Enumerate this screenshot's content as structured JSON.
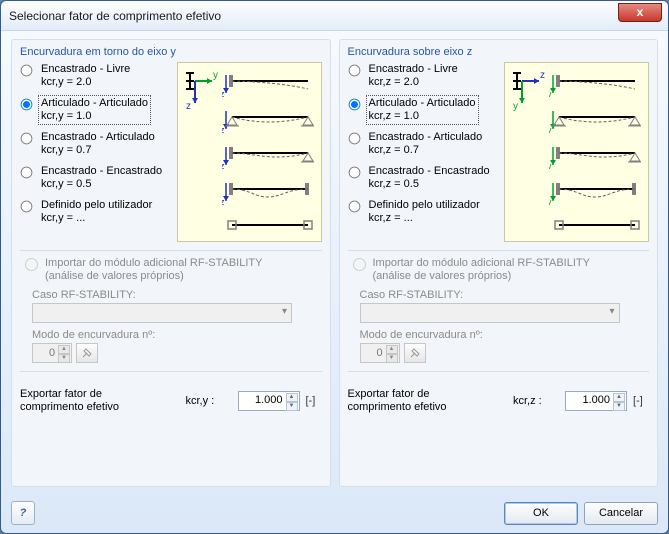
{
  "window": {
    "title": "Selecionar fator de comprimento efetivo"
  },
  "close": "x",
  "left": {
    "title": "Encurvadura em torno do eixo y",
    "options": [
      {
        "label": "Encastrado - Livre",
        "sub": "kcr,y = 2.0"
      },
      {
        "label": "Articulado - Articulado",
        "sub": "kcr,y = 1.0"
      },
      {
        "label": "Encastrado - Articulado",
        "sub": "kcr,y = 0.7"
      },
      {
        "label": "Encastrado - Encastrado",
        "sub": "kcr,y = 0.5"
      },
      {
        "label": "Definido pelo utilizador",
        "sub": "kcr,y = ..."
      }
    ],
    "selected": 1,
    "import": {
      "label": "Importar do módulo adicional RF-STABILITY",
      "sub": "(análise de valores próprios)"
    },
    "case_label": "Caso RF-STABILITY:",
    "mode_label": "Modo de encurvadura nº:",
    "mode_value": "0",
    "export_label": "Exportar fator de\ncomprimento efetivo",
    "k_label": "kcr,y :",
    "k_value": "1.000",
    "unit": "[-]",
    "axis_main": "y",
    "axis_other": "z"
  },
  "right": {
    "title": "Encurvadura sobre eixo z",
    "options": [
      {
        "label": "Encastrado - Livre",
        "sub": "kcr,z = 2.0"
      },
      {
        "label": "Articulado - Articulado",
        "sub": "kcr,z = 1.0"
      },
      {
        "label": "Encastrado - Articulado",
        "sub": "kcr,z = 0.7"
      },
      {
        "label": "Encastrado - Encastrado",
        "sub": "kcr,z = 0.5"
      },
      {
        "label": "Definido pelo utilizador",
        "sub": "kcr,z = ..."
      }
    ],
    "selected": 1,
    "import": {
      "label": "Importar do módulo adicional RF-STABILITY",
      "sub": "(análise de valores próprios)"
    },
    "case_label": "Caso RF-STABILITY:",
    "mode_label": "Modo de encurvadura nº:",
    "mode_value": "0",
    "export_label": "Exportar fator de\ncomprimento efetivo",
    "k_label": "kcr,z :",
    "k_value": "1.000",
    "unit": "[-]",
    "axis_main": "z",
    "axis_other": "y"
  },
  "buttons": {
    "ok": "OK",
    "cancel": "Cancelar",
    "help": "?"
  },
  "colors": {
    "diagram_bg": "#ffffe4",
    "axis_green": "#00a030",
    "axis_blue": "#2030c0",
    "beam": "#000000",
    "dash": "#606060",
    "support": "#808080"
  }
}
